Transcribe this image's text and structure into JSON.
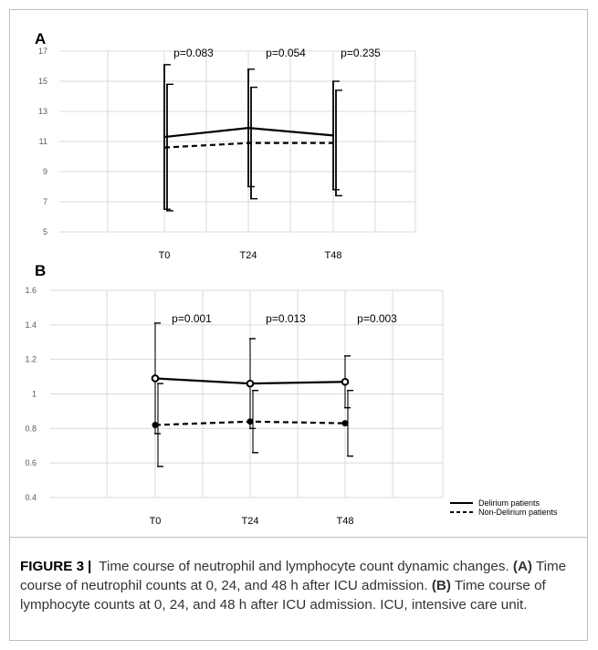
{
  "chart_data": [
    {
      "panel": "A",
      "type": "line",
      "categories": [
        "T0",
        "T24",
        "T48"
      ],
      "y_ticks": [
        "5",
        "7",
        "9",
        "11",
        "13",
        "15",
        "17"
      ],
      "ylim": [
        5,
        17
      ],
      "grid": true,
      "series": [
        {
          "style": "solid",
          "values": [
            11.3,
            11.9,
            11.4
          ],
          "error_upper": [
            16.1,
            15.8,
            15.0
          ],
          "error_lower": [
            6.5,
            8.0,
            7.8
          ]
        },
        {
          "style": "dashed",
          "values": [
            10.6,
            10.9,
            10.9
          ],
          "error_upper": [
            14.8,
            14.6,
            14.4
          ],
          "error_lower": [
            6.4,
            7.2,
            7.4
          ]
        }
      ],
      "annotations": [
        "p=0.083",
        "p=0.054",
        "p=0.235"
      ]
    },
    {
      "panel": "B",
      "type": "line",
      "categories": [
        "T0",
        "T24",
        "T48"
      ],
      "y_ticks": [
        "0.4",
        "0.6",
        "0.8",
        "1",
        "1.2",
        "1.4",
        "1.6"
      ],
      "ylim": [
        0.4,
        1.6
      ],
      "grid": true,
      "legend_position": "bottom-right",
      "series": [
        {
          "name": "Delirium patients",
          "style": "solid",
          "values": [
            1.09,
            1.06,
            1.07
          ],
          "error_upper": [
            1.41,
            1.32,
            1.22
          ],
          "error_lower": [
            0.77,
            0.8,
            0.92
          ]
        },
        {
          "name": "Non-Delirium patients",
          "style": "dashed",
          "values": [
            0.82,
            0.84,
            0.83
          ],
          "error_upper": [
            1.06,
            1.02,
            1.02
          ],
          "error_lower": [
            0.58,
            0.66,
            0.64
          ]
        }
      ],
      "annotations": [
        "p=0.001",
        "p=0.013",
        "p=0.003"
      ]
    }
  ],
  "caption": {
    "figure_label": "FIGURE 3",
    "title": "Time course of neutrophil and lymphocyte count dynamic changes.",
    "part_a_label": "(A)",
    "part_a_text": "Time course of neutrophil counts at 0, 24, and 48 h after ICU admission.",
    "part_b_label": "(B)",
    "part_b_text": "Time course of lymphocyte counts at 0, 24, and 48 h after ICU admission. ICU, intensive care unit."
  }
}
